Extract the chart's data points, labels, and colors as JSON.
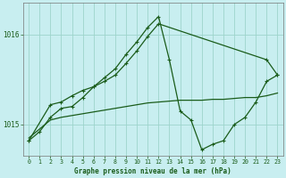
{
  "title": "Graphe pression niveau de la mer (hPa)",
  "bg_color": "#c8eef0",
  "grid_color": "#9dd4cc",
  "line_color": "#1a5c1a",
  "xlim": [
    -0.5,
    23.5
  ],
  "ylim": [
    1014.65,
    1016.35
  ],
  "yticks": [
    1015.0,
    1016.0
  ],
  "xticks": [
    0,
    1,
    2,
    3,
    4,
    5,
    6,
    7,
    8,
    9,
    10,
    11,
    12,
    13,
    14,
    15,
    16,
    17,
    18,
    19,
    20,
    21,
    22,
    23
  ],
  "s1x": [
    0,
    1,
    2,
    3,
    4,
    5,
    6,
    7,
    8,
    9,
    10,
    11,
    12,
    13,
    14,
    15,
    16,
    17,
    18,
    19,
    20,
    21,
    22,
    23
  ],
  "s1y": [
    1014.85,
    1014.95,
    1015.05,
    1015.08,
    1015.1,
    1015.12,
    1015.14,
    1015.16,
    1015.18,
    1015.2,
    1015.22,
    1015.24,
    1015.25,
    1015.26,
    1015.27,
    1015.27,
    1015.27,
    1015.28,
    1015.28,
    1015.29,
    1015.3,
    1015.3,
    1015.32,
    1015.35
  ],
  "s2x": [
    0,
    1,
    2,
    3,
    4,
    5,
    6,
    7,
    8,
    9,
    10,
    11,
    12,
    13,
    14,
    15,
    16,
    17,
    18,
    19,
    20,
    21,
    22,
    23
  ],
  "s2y": [
    1014.82,
    1014.92,
    1015.08,
    1015.18,
    1015.2,
    1015.3,
    1015.42,
    1015.52,
    1015.62,
    1015.78,
    1015.92,
    1016.08,
    1016.2,
    1015.72,
    1015.15,
    1015.05,
    1014.72,
    1014.78,
    1014.82,
    1015.0,
    1015.08,
    1015.25,
    1015.48,
    1015.55
  ],
  "s3x": [
    0,
    2,
    3,
    4,
    5,
    6,
    7,
    8,
    9,
    10,
    11,
    12,
    22,
    23
  ],
  "s3y": [
    1014.82,
    1015.22,
    1015.25,
    1015.32,
    1015.38,
    1015.42,
    1015.48,
    1015.55,
    1015.68,
    1015.82,
    1015.98,
    1016.12,
    1015.72,
    1015.55
  ]
}
